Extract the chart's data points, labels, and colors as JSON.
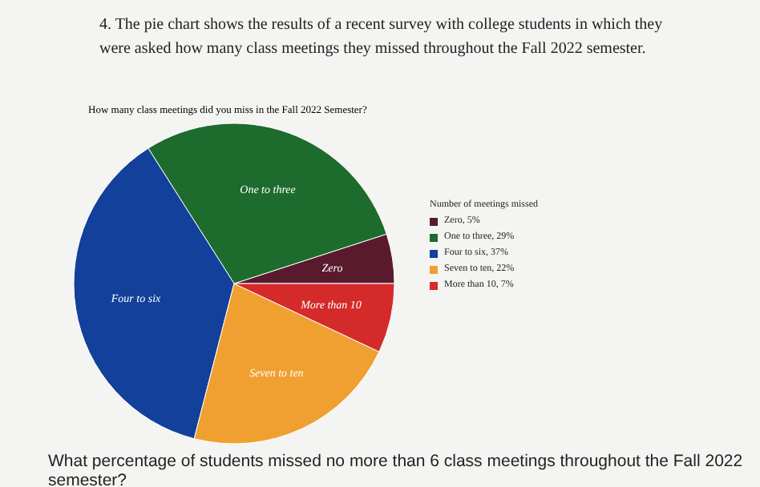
{
  "chart_data": {
    "type": "pie",
    "title": "4. The pie chart shows the results of a recent survey with college students in which they were asked how many class meetings they missed throughout the Fall 2022 semester.",
    "subtitle": "How many class meetings did you miss in the Fall 2022 Semester?",
    "legend_title": "Number of meetings missed",
    "categories": [
      "Zero",
      "One to three",
      "Four to six",
      "Seven to ten",
      "More than 10"
    ],
    "values": [
      5,
      29,
      37,
      22,
      7
    ],
    "value_labels": [
      ", 5%",
      ", 29%",
      ", 37%",
      ", 22%",
      ", 7%"
    ],
    "colors": [
      "#5a1a2e",
      "#1e6b2e",
      "#12409a",
      "#f0a030",
      "#d42a2a"
    ],
    "legend": "right",
    "annotations": [
      "What percentage of students missed no more than 6 class meetings throughout the Fall 2022 semester?"
    ]
  }
}
